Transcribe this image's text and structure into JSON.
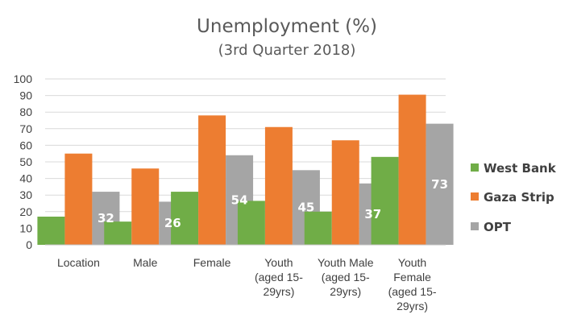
{
  "chart_data": {
    "type": "bar",
    "title": "Unemployment (%)",
    "subtitle": "(3rd Quarter 2018)",
    "categories": [
      [
        "Location"
      ],
      [
        "Male"
      ],
      [
        "Female"
      ],
      [
        "Youth",
        "(aged 15-",
        "29yrs)"
      ],
      [
        "Youth Male",
        "(aged 15-",
        "29yrs)"
      ],
      [
        "Youth",
        "Female",
        "(aged 15-",
        "29yrs)"
      ]
    ],
    "series": [
      {
        "name": "West Bank",
        "color": "#70ad47",
        "values": [
          17,
          14,
          32,
          26.5,
          20,
          53
        ],
        "labels": [
          "",
          "",
          "",
          "",
          "",
          ""
        ]
      },
      {
        "name": "Gaza Strip",
        "color": "#ed7d31",
        "values": [
          55,
          46,
          78,
          71,
          63,
          90.5
        ],
        "labels": [
          "",
          "",
          "",
          "",
          "",
          ""
        ]
      },
      {
        "name": "OPT",
        "color": "#a5a5a5",
        "values": [
          32,
          26,
          54,
          45,
          37,
          73
        ],
        "labels": [
          "32",
          "26",
          "54",
          "45",
          "37",
          "73"
        ]
      }
    ],
    "ylim": [
      0,
      100
    ],
    "yticks": [
      0,
      10,
      20,
      30,
      40,
      50,
      60,
      70,
      80,
      90,
      100
    ],
    "grid": true,
    "legend_position": "right"
  }
}
